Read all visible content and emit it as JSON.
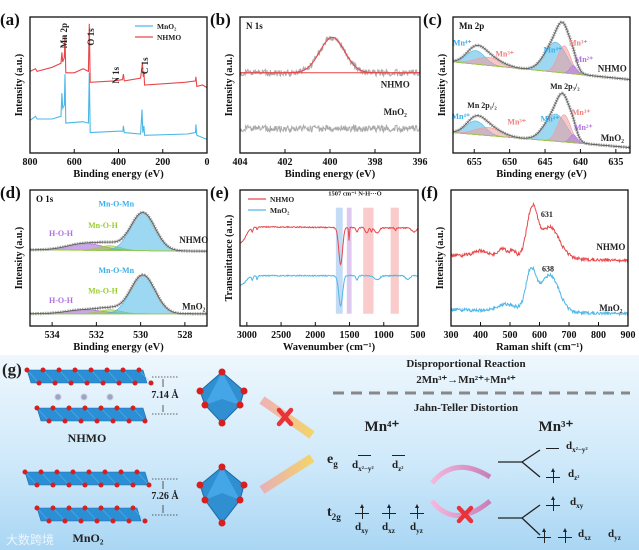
{
  "chart_data": [
    {
      "panel_id": "a",
      "panel_label": "(a)",
      "type": "line",
      "subtitle": "",
      "xlabel": "Binding energy (eV)",
      "ylabel": "Intensity (a.u.)",
      "xlim": [
        800,
        0
      ],
      "ylim": [
        0,
        1
      ],
      "xticks": [
        800,
        600,
        400,
        200,
        0
      ],
      "legend": {
        "placement": "top-right"
      },
      "series": [
        {
          "name": "MnO₂",
          "color": "#4db8e8",
          "points": [
            [
              800,
              0.24
            ],
            [
              775,
              0.27
            ],
            [
              768,
              0.25
            ],
            [
              700,
              0.25
            ],
            [
              660,
              0.27
            ],
            [
              656,
              0.44
            ],
            [
              652,
              0.33
            ],
            [
              645,
              0.35
            ],
            [
              642,
              0.58
            ],
            [
              638,
              0.22
            ],
            [
              560,
              0.23
            ],
            [
              536,
              0.22
            ],
            [
              532,
              0.59
            ],
            [
              528,
              0.15
            ],
            [
              400,
              0.16
            ],
            [
              380,
              0.16
            ],
            [
              378,
              0.2
            ],
            [
              374,
              0.15
            ],
            [
              300,
              0.14
            ],
            [
              294,
              0.32
            ],
            [
              290,
              0.15
            ],
            [
              285,
              0.2
            ],
            [
              282,
              0.13
            ],
            [
              90,
              0.14
            ],
            [
              52,
              0.15
            ],
            [
              50,
              0.21
            ],
            [
              46,
              0.13
            ],
            [
              0,
              0.1
            ]
          ]
        },
        {
          "name": "NHMO",
          "color": "#e8474a",
          "points": [
            [
              800,
              0.6
            ],
            [
              775,
              0.62
            ],
            [
              768,
              0.6
            ],
            [
              700,
              0.63
            ],
            [
              660,
              0.66
            ],
            [
              656,
              0.74
            ],
            [
              652,
              0.67
            ],
            [
              645,
              0.7
            ],
            [
              642,
              0.86
            ],
            [
              638,
              0.59
            ],
            [
              600,
              0.59
            ],
            [
              560,
              0.62
            ],
            [
              536,
              0.6
            ],
            [
              532,
              0.95
            ],
            [
              528,
              0.52
            ],
            [
              420,
              0.53
            ],
            [
              382,
              0.54
            ],
            [
              378,
              0.58
            ],
            [
              374,
              0.53
            ],
            [
              300,
              0.55
            ],
            [
              292,
              0.66
            ],
            [
              288,
              0.56
            ],
            [
              285,
              0.6
            ],
            [
              282,
              0.5
            ],
            [
              100,
              0.52
            ],
            [
              52,
              0.53
            ],
            [
              50,
              0.56
            ],
            [
              46,
              0.49
            ],
            [
              20,
              0.5
            ],
            [
              0,
              0.48
            ]
          ]
        }
      ],
      "annotations": [
        {
          "text": "Mn 2p",
          "x": 646,
          "y": 0.77,
          "rotate": true,
          "color": "#222"
        },
        {
          "text": "O 1s",
          "x": 524,
          "y": 0.79,
          "rotate": true,
          "color": "#222"
        },
        {
          "text": "N 1s",
          "x": 411,
          "y": 0.51,
          "rotate": true,
          "color": "#222"
        },
        {
          "text": "C 1s",
          "x": 280,
          "y": 0.58,
          "rotate": true,
          "color": "#222"
        }
      ]
    },
    {
      "panel_id": "b",
      "panel_label": "(b)",
      "type": "line",
      "subtitle": "N 1s",
      "xlabel": "Binding energy (eV)",
      "ylabel": "Intensity (a.u.)",
      "xlim": [
        404,
        396
      ],
      "ylim": [
        0,
        1
      ],
      "xticks": [
        404,
        402,
        400,
        398,
        396
      ],
      "series": [
        {
          "name": "NHMO",
          "color": "#aaaaaa",
          "fit_color": "#e8474a",
          "baseline": [
            0.59,
            0.59
          ],
          "noise": 0.025,
          "fit": true,
          "peaks": [
            {
              "center": 399.9,
              "height": 0.26,
              "width": 0.55
            }
          ],
          "label_at": [
            397.1,
            0.48
          ]
        },
        {
          "name": "MnO₂",
          "color": "#aaaaaa",
          "baseline": [
            0.18,
            0.18
          ],
          "noise": 0.025,
          "label_at": [
            397.1,
            0.28
          ]
        }
      ],
      "annotations": []
    },
    {
      "panel_id": "c",
      "panel_label": "(c)",
      "type": "line",
      "subtitle": "Mn 2p",
      "xlabel": "Binding energy (eV)",
      "ylabel": "Intensity (a.u.)",
      "xlim": [
        658,
        633
      ],
      "ylim": [
        0,
        1
      ],
      "xticks": [
        655,
        650,
        645,
        640,
        635
      ],
      "series": [
        {
          "name": "NHMO",
          "baseline": [
            0.67,
            0.54
          ],
          "envelope": true,
          "label_at": [
            635.5,
            0.6
          ],
          "components": [
            {
              "center": 654.8,
              "height": 0.1,
              "width": 1.3,
              "color": "#4db8e8"
            },
            {
              "center": 653.0,
              "height": 0.06,
              "width": 1.8,
              "color": "#f29a9a"
            },
            {
              "center": 643.5,
              "height": 0.22,
              "width": 1.5,
              "color": "#4db8e8"
            },
            {
              "center": 642.3,
              "height": 0.2,
              "width": 0.9,
              "color": "#f29a9a"
            },
            {
              "center": 641.0,
              "height": 0.06,
              "width": 0.5,
              "color": "#b77ce6"
            }
          ]
        },
        {
          "name": "MnO₂",
          "baseline": [
            0.15,
            0.04
          ],
          "envelope": true,
          "label_at": [
            635.5,
            0.09
          ],
          "components": [
            {
              "center": 654.8,
              "height": 0.1,
              "width": 1.3,
              "color": "#4db8e8"
            },
            {
              "center": 653.0,
              "height": 0.06,
              "width": 1.8,
              "color": "#f29a9a"
            },
            {
              "center": 643.5,
              "height": 0.2,
              "width": 1.5,
              "color": "#4db8e8"
            },
            {
              "center": 642.3,
              "height": 0.2,
              "width": 0.9,
              "color": "#f29a9a"
            },
            {
              "center": 641.0,
              "height": 0.06,
              "width": 0.5,
              "color": "#b77ce6"
            }
          ]
        }
      ],
      "annotations": [
        {
          "text": "Mn⁴⁺",
          "x": 656.7,
          "y": 0.79,
          "color": "#3aaeea"
        },
        {
          "text": "Mn³⁺",
          "x": 650.7,
          "y": 0.71,
          "color": "#f08080"
        },
        {
          "text": "Mn⁴⁺",
          "x": 643.9,
          "y": 0.74,
          "color": "#3aaeea"
        },
        {
          "text": "Mn³⁺",
          "x": 640.3,
          "y": 0.79,
          "color": "#f08080"
        },
        {
          "text": "Mn²⁺",
          "x": 639.5,
          "y": 0.67,
          "color": "#b070e0"
        },
        {
          "text": "Mn 2p₃/₂",
          "x": 642.2,
          "y": 0.47,
          "color": "#222"
        },
        {
          "text": "Mn 2p₁/₂",
          "x": 653.9,
          "y": 0.33,
          "color": "#222"
        },
        {
          "text": "Mn⁴⁺",
          "x": 656.9,
          "y": 0.25,
          "color": "#3aaeea"
        },
        {
          "text": "Mn³⁺",
          "x": 649.0,
          "y": 0.21,
          "color": "#f08080"
        },
        {
          "text": "Mn⁴⁺",
          "x": 644.3,
          "y": 0.23,
          "color": "#3aaeea"
        },
        {
          "text": "Mn³⁺",
          "x": 639.9,
          "y": 0.28,
          "color": "#f08080"
        },
        {
          "text": "Mn²⁺",
          "x": 639.6,
          "y": 0.17,
          "color": "#b070e0"
        }
      ]
    },
    {
      "panel_id": "d",
      "panel_label": "(d)",
      "type": "line",
      "subtitle": "O 1s",
      "xlabel": "Binding energy (eV)",
      "ylabel": "Intensity (a.u.)",
      "xlim": [
        535,
        527
      ],
      "ylim": [
        0,
        1
      ],
      "xticks": [
        534,
        532,
        530,
        528
      ],
      "series": [
        {
          "name": "NHMO",
          "baseline": [
            0.56,
            0.55
          ],
          "envelope": true,
          "label_at": [
            527.6,
            0.61
          ],
          "components": [
            {
              "center": 532.5,
              "height": 0.05,
              "width": 0.8,
              "color": "#a25be0"
            },
            {
              "center": 531.4,
              "height": 0.035,
              "width": 0.5,
              "color": "#9acd32"
            },
            {
              "center": 529.9,
              "height": 0.28,
              "width": 0.55,
              "color": "#4db8e8"
            }
          ]
        },
        {
          "name": "MnO₂",
          "baseline": [
            0.09,
            0.09
          ],
          "envelope": true,
          "label_at": [
            527.6,
            0.12
          ],
          "components": [
            {
              "center": 532.5,
              "height": 0.03,
              "width": 0.8,
              "color": "#a25be0"
            },
            {
              "center": 531.4,
              "height": 0.03,
              "width": 0.5,
              "color": "#9acd32"
            },
            {
              "center": 529.9,
              "height": 0.285,
              "width": 0.55,
              "color": "#4db8e8"
            }
          ]
        }
      ],
      "annotations": [
        {
          "text": "Mn-O-Mn",
          "x": 531.1,
          "y": 0.88,
          "color": "#3aaeea"
        },
        {
          "text": "Mn-O-H",
          "x": 531.7,
          "y": 0.72,
          "color": "#9acd32"
        },
        {
          "text": "H-O-H",
          "x": 533.6,
          "y": 0.66,
          "color": "#b070e0"
        },
        {
          "text": "Mn-O-Mn",
          "x": 531.1,
          "y": 0.39,
          "color": "#3aaeea"
        },
        {
          "text": "Mn-O-H",
          "x": 531.7,
          "y": 0.24,
          "color": "#9acd32"
        },
        {
          "text": "H-O-H",
          "x": 533.6,
          "y": 0.17,
          "color": "#b070e0"
        }
      ]
    },
    {
      "panel_id": "e",
      "panel_label": "(e)",
      "type": "line",
      "subtitle": "",
      "xlabel": "Wavenumber (cm⁻¹)",
      "ylabel": "Transmittance (a.u.)",
      "xlim": [
        3100,
        500
      ],
      "ylim": [
        0,
        1
      ],
      "xticks": [
        3000,
        2500,
        2000,
        1500,
        1000,
        500
      ],
      "legend": {
        "placement": "top-left"
      },
      "bands": [
        {
          "range": [
            1600,
            1700
          ],
          "color": "#9cc3ee"
        },
        {
          "range": [
            1470,
            1540
          ],
          "color": "#c9a3e6"
        },
        {
          "range": [
            1150,
            1300
          ],
          "color": "#f6a8a8"
        },
        {
          "range": [
            780,
            900
          ],
          "color": "#f6a8a8"
        }
      ],
      "series": [
        {
          "name": "NHMO",
          "color": "#e8474a",
          "baseline": [
            0.73,
            0.72
          ],
          "noise": 0.004,
          "peaks": [
            {
              "center": 3100,
              "height": -0.12,
              "width": 80
            },
            {
              "center": 2920,
              "height": -0.03,
              "width": 10
            },
            {
              "center": 2850,
              "height": -0.02,
              "width": 8
            },
            {
              "center": 1630,
              "height": -0.27,
              "width": 28
            },
            {
              "center": 1507,
              "height": -0.1,
              "width": 6
            },
            {
              "center": 1390,
              "height": -0.03,
              "width": 15
            },
            {
              "center": 1250,
              "height": -0.04,
              "width": 20
            },
            {
              "center": 1180,
              "height": -0.03,
              "width": 10
            },
            {
              "center": 1100,
              "height": -0.04,
              "width": 30
            },
            {
              "center": 830,
              "height": -0.02,
              "width": 10
            },
            {
              "center": 560,
              "height": -0.03,
              "width": 30
            }
          ]
        },
        {
          "name": "MnO₂",
          "color": "#4db8e8",
          "baseline": [
            0.37,
            0.37
          ],
          "noise": 0.004,
          "peaks": [
            {
              "center": 3100,
              "height": -0.07,
              "width": 80
            },
            {
              "center": 2920,
              "height": -0.03,
              "width": 10
            },
            {
              "center": 2850,
              "height": -0.03,
              "width": 8
            },
            {
              "center": 1630,
              "height": -0.22,
              "width": 28
            },
            {
              "center": 1390,
              "height": -0.03,
              "width": 15
            },
            {
              "center": 1100,
              "height": -0.03,
              "width": 40
            },
            {
              "center": 650,
              "height": -0.03,
              "width": 30
            }
          ]
        }
      ],
      "annotations": [
        {
          "text": "1507 cm⁻¹  N-H···O",
          "x": 1420,
          "y": 0.96,
          "color": "#222",
          "small": true
        }
      ]
    },
    {
      "panel_id": "f",
      "panel_label": "(f)",
      "type": "line",
      "subtitle": "",
      "xlabel": "Raman shift (cm⁻¹)",
      "ylabel": "Intensity (a.u.)",
      "xlim": [
        300,
        900
      ],
      "ylim": [
        0,
        1
      ],
      "xticks": [
        300,
        400,
        500,
        600,
        700,
        800,
        900
      ],
      "series": [
        {
          "name": "NHMO",
          "color": "#e8474a",
          "baseline": [
            0.52,
            0.48
          ],
          "noise": 0.012,
          "label_at": [
            842,
            0.56
          ],
          "peaks": [
            {
              "center": 400,
              "height": 0.04,
              "width": 25
            },
            {
              "center": 475,
              "height": 0.06,
              "width": 15
            },
            {
              "center": 510,
              "height": 0.05,
              "width": 10
            },
            {
              "center": 575,
              "height": 0.36,
              "width": 18
            },
            {
              "center": 631,
              "height": 0.2,
              "width": 28
            },
            {
              "center": 665,
              "height": 0.05,
              "width": 30
            }
          ]
        },
        {
          "name": "MnO₂",
          "color": "#4db8e8",
          "baseline": [
            0.12,
            0.09
          ],
          "noise": 0.012,
          "label_at": [
            842,
            0.11
          ],
          "peaks": [
            {
              "center": 490,
              "height": 0.05,
              "width": 30
            },
            {
              "center": 570,
              "height": 0.27,
              "width": 16
            },
            {
              "center": 600,
              "height": 0.06,
              "width": 30
            },
            {
              "center": 638,
              "height": 0.24,
              "width": 30
            }
          ]
        }
      ],
      "annotations": [
        {
          "text": "631",
          "x": 625,
          "y": 0.8,
          "color": "#222"
        },
        {
          "text": "638",
          "x": 629,
          "y": 0.4,
          "color": "#222"
        }
      ]
    }
  ],
  "schematic": {
    "panel_label": "(g)",
    "nhmo_label": "NHMO",
    "mno2_label": "MnO₂",
    "nhmo_spacing": "7.14 Å",
    "mno2_spacing": "7.26 Å",
    "disproportional_title": "Disproportional Reaction",
    "disproportional_equation": "2Mn³⁺→Mn²⁺+Mn⁴⁺",
    "jahn_teller_title": "Jahn-Teller Distortion",
    "mn4_label": "Mn⁴⁺",
    "mn3_label": "Mn³⁺",
    "eg_label": {
      "main": "e",
      "sub": "g"
    },
    "t2g_label": {
      "main": "t",
      "sub": "2g"
    },
    "orbitals": {
      "dx2y2": {
        "main": "d",
        "sub": "x²−y²"
      },
      "dz2": {
        "main": "d",
        "sub": "z²"
      },
      "dxy": {
        "main": "d",
        "sub": "xy"
      },
      "dxz": {
        "main": "d",
        "sub": "xz"
      },
      "dyz": {
        "main": "d",
        "sub": "yz"
      }
    },
    "watermark": "大数跨境",
    "colors": {
      "slab": "#2b8fd6",
      "oxygen": "#d81e1e",
      "forbidden": "#e8333a"
    }
  }
}
